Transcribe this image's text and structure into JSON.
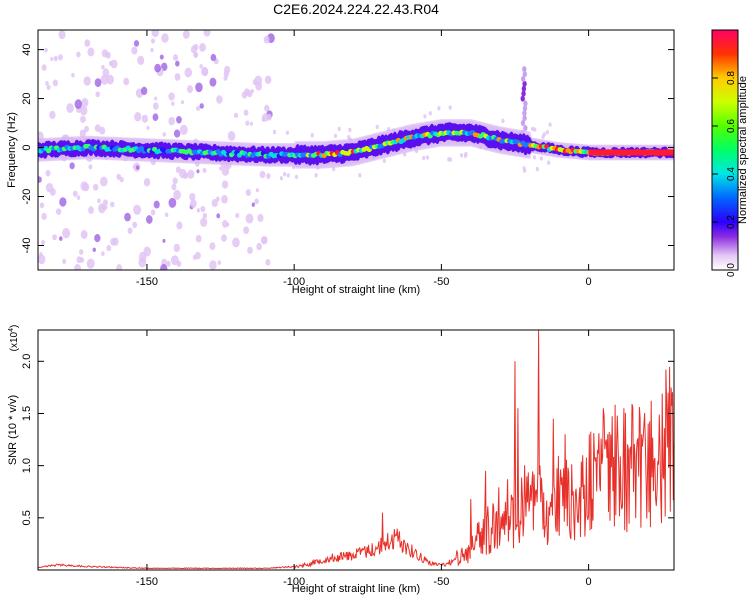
{
  "title": "C2E6.2024.224.22.43.R04",
  "colors": {
    "axes": "#000000",
    "snr_line": "#e8302a",
    "background": "#ffffff"
  },
  "chart_data": [
    {
      "type": "heatmap",
      "xlabel": "Height of straight line (km)",
      "ylabel": "Frequency (Hz)",
      "xlim": [
        -187,
        29
      ],
      "ylim": [
        -50,
        48
      ],
      "xticks": [
        {
          "value": -150,
          "label": "-150"
        },
        {
          "value": -100,
          "label": "-100"
        },
        {
          "value": -50,
          "label": "-50"
        },
        {
          "value": 0,
          "label": "0"
        }
      ],
      "yticks": [
        {
          "value": 40,
          "label": "40"
        },
        {
          "value": 20,
          "label": "20"
        },
        {
          "value": 0,
          "label": "0"
        },
        {
          "value": -20,
          "label": "-20"
        },
        {
          "value": -40,
          "label": "-40"
        }
      ],
      "ridge": {
        "description_points": [
          [
            -187,
            -1
          ],
          [
            -170,
            0
          ],
          [
            -150,
            -1
          ],
          [
            -130,
            -2
          ],
          [
            -110,
            -3
          ],
          [
            -90,
            -3
          ],
          [
            -80,
            -2
          ],
          [
            -70,
            1
          ],
          [
            -60,
            4
          ],
          [
            -50,
            6
          ],
          [
            -40,
            6
          ],
          [
            -30,
            3
          ],
          [
            -20,
            1
          ],
          [
            -10,
            -1
          ],
          [
            0,
            -2
          ],
          [
            10,
            -2
          ],
          [
            29,
            -2
          ]
        ]
      },
      "colorbar": {
        "label": "Normalized spectral amplitude",
        "range": [
          0.0,
          1.0
        ],
        "ticks": [
          {
            "value": 0.0,
            "label": "0.0"
          },
          {
            "value": 0.2,
            "label": "0.2"
          },
          {
            "value": 0.4,
            "label": "0.4"
          },
          {
            "value": 0.6,
            "label": "0.6"
          },
          {
            "value": 0.8,
            "label": "0.8"
          }
        ]
      }
    },
    {
      "type": "line",
      "xlabel": "Height of straight line (km)",
      "ylabel": "SNR (10 * v/v)",
      "y_multiplier": "(x10",
      "y_multiplier_exp": "4",
      "y_multiplier_close": ")",
      "xlim": [
        -187,
        29
      ],
      "ylim": [
        0,
        2.3
      ],
      "xticks": [
        {
          "value": -150,
          "label": "-150"
        },
        {
          "value": -100,
          "label": "-100"
        },
        {
          "value": -50,
          "label": "-50"
        },
        {
          "value": 0,
          "label": "0"
        }
      ],
      "yticks": [
        {
          "value": 0.5,
          "label": "0.5"
        },
        {
          "value": 1.0,
          "label": "1.0"
        },
        {
          "value": 1.5,
          "label": "1.5"
        },
        {
          "value": 2.0,
          "label": "2.0"
        }
      ],
      "envelope": [
        [
          -187,
          0.03
        ],
        [
          -180,
          0.06
        ],
        [
          -175,
          0.05
        ],
        [
          -170,
          0.04
        ],
        [
          -160,
          0.03
        ],
        [
          -150,
          0.02
        ],
        [
          -130,
          0.02
        ],
        [
          -110,
          0.02
        ],
        [
          -100,
          0.04
        ],
        [
          -95,
          0.08
        ],
        [
          -90,
          0.14
        ],
        [
          -85,
          0.17
        ],
        [
          -80,
          0.2
        ],
        [
          -75,
          0.25
        ],
        [
          -70,
          0.32
        ],
        [
          -68,
          0.38
        ],
        [
          -65,
          0.42
        ],
        [
          -60,
          0.25
        ],
        [
          -55,
          0.12
        ],
        [
          -52,
          0.07
        ],
        [
          -48,
          0.08
        ],
        [
          -45,
          0.15
        ],
        [
          -40,
          0.25
        ],
        [
          -35,
          0.5
        ],
        [
          -30,
          0.65
        ],
        [
          -25,
          0.78
        ],
        [
          -20,
          0.82
        ],
        [
          -15,
          0.8
        ],
        [
          -10,
          0.9
        ],
        [
          -5,
          1.05
        ],
        [
          0,
          1.05
        ],
        [
          5,
          1.2
        ],
        [
          10,
          1.3
        ],
        [
          15,
          1.35
        ],
        [
          20,
          1.45
        ],
        [
          25,
          1.55
        ],
        [
          29,
          1.62
        ]
      ],
      "spikes": [
        {
          "x": -25,
          "y": 2.0
        },
        {
          "x": -24,
          "y": 1.55
        },
        {
          "x": -17,
          "y": 2.3
        },
        {
          "x": -70,
          "y": 0.55
        },
        {
          "x": -40,
          "y": 0.68
        },
        {
          "x": -35,
          "y": 0.95
        },
        {
          "x": -12,
          "y": 1.45
        },
        {
          "x": -8,
          "y": 1.3
        },
        {
          "x": 5,
          "y": 1.55
        },
        {
          "x": 12,
          "y": 1.55
        },
        {
          "x": 27,
          "y": 1.7
        }
      ]
    }
  ]
}
